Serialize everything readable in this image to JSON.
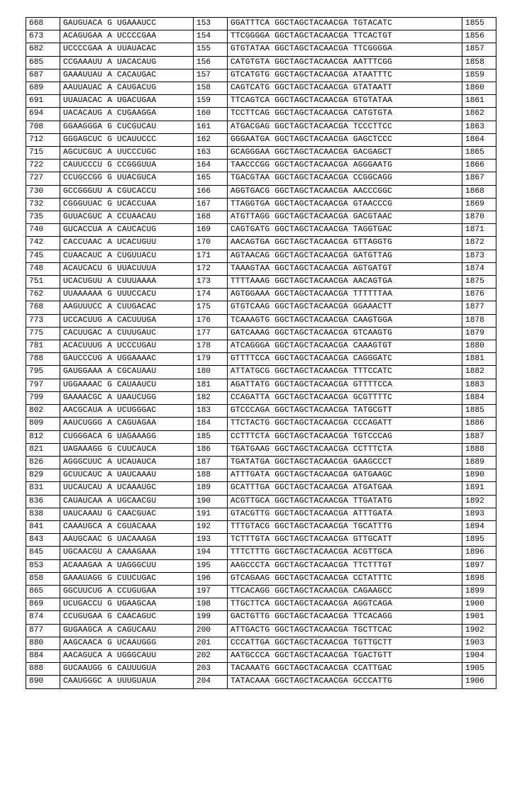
{
  "table": {
    "rows": [
      {
        "id1": "668",
        "seq1": "GAUGUACA G UGAAAUCC",
        "id2": "153",
        "seq2": "GGATTTCA GGCTAGCTACAACGA TGTACATC",
        "id3": "1855"
      },
      {
        "id1": "673",
        "seq1": "ACAGUGAA A UCCCCGAA",
        "id2": "154",
        "seq2": "TTCGGGGA GGCTAGCTACAACGA TTCACTGT",
        "id3": "1856"
      },
      {
        "id1": "682",
        "seq1": "UCCCCGAA A UUAUACAC",
        "id2": "155",
        "seq2": "GTGTATAA GGCTAGCTACAACGA TTCGGGGA",
        "id3": "1857"
      },
      {
        "id1": "685",
        "seq1": "CCGAAAUU A UACACAUG",
        "id2": "156",
        "seq2": "CATGTGTA GGCTAGCTACAACGA AATTTCGG",
        "id3": "1858"
      },
      {
        "id1": "687",
        "seq1": "GAAAUUAU A CACAUGAC",
        "id2": "157",
        "seq2": "GTCATGTG GGCTAGCTACAACGA ATAATTTC",
        "id3": "1859"
      },
      {
        "id1": "689",
        "seq1": "AAUUAUAC A CAUGACUG",
        "id2": "158",
        "seq2": "CAGTCATG GGCTAGCTACAACGA GTATAATT",
        "id3": "1860"
      },
      {
        "id1": "691",
        "seq1": "UUAUACAC A UGACUGAA",
        "id2": "159",
        "seq2": "TTCAGTCA GGCTAGCTACAACGA GTGTATAA",
        "id3": "1861"
      },
      {
        "id1": "694",
        "seq1": "UACACAUG A CUGAAGGA",
        "id2": "160",
        "seq2": "TCCTTCAG GGCTAGCTACAACGA CATGTGTA",
        "id3": "1862"
      },
      {
        "id1": "708",
        "seq1": "GGAAGGGA G CUCGUCAU",
        "id2": "161",
        "seq2": "ATGACGAG GGCTAGCTACAACGA TCCCTTCC",
        "id3": "1863"
      },
      {
        "id1": "712",
        "seq1": "GGGAGCUC G UCAUUCCC",
        "id2": "162",
        "seq2": "GGGAATGA GGCTAGCTACAACGA GAGCTCCC",
        "id3": "1864"
      },
      {
        "id1": "715",
        "seq1": "AGCUCGUC A UUCCCUGC",
        "id2": "163",
        "seq2": "GCAGGGAA GGCTAGCTACAACGA GACGAGCT",
        "id3": "1865"
      },
      {
        "id1": "722",
        "seq1": "CAUUCCCU G CCGGGUUA",
        "id2": "164",
        "seq2": "TAACCCGG GGCTAGCTACAACGA AGGGAATG",
        "id3": "1866"
      },
      {
        "id1": "727",
        "seq1": "CCUGCCGG G UUACGUCA",
        "id2": "165",
        "seq2": "TGACGTAA GGCTAGCTACAACGA CCGGCAGG",
        "id3": "1867"
      },
      {
        "id1": "730",
        "seq1": "GCCGGGUU A CGUCACCU",
        "id2": "166",
        "seq2": "AGGTGACG GGCTAGCTACAACGA AACCCGGC",
        "id3": "1868"
      },
      {
        "id1": "732",
        "seq1": "CGGGUUAC G UCACCUAA",
        "id2": "167",
        "seq2": "TTAGGTGA GGCTAGCTACAACGA GTAACCCG",
        "id3": "1869"
      },
      {
        "id1": "735",
        "seq1": "GUUACGUC A CCUAACAU",
        "id2": "168",
        "seq2": "ATGTTAGG GGCTAGCTACAACGA GACGTAAC",
        "id3": "1870"
      },
      {
        "id1": "740",
        "seq1": "GUCACCUA A CAUCACUG",
        "id2": "169",
        "seq2": "CAGTGATG GGCTAGCTACAACGA TAGGTGAC",
        "id3": "1871"
      },
      {
        "id1": "742",
        "seq1": "CACCUAAC A UCACUGUU",
        "id2": "170",
        "seq2": "AACAGTGA GGCTAGCTACAACGA GTTAGGTG",
        "id3": "1872"
      },
      {
        "id1": "745",
        "seq1": "CUAACAUC A CUGUUACU",
        "id2": "171",
        "seq2": "AGTAACAG GGCTAGCTACAACGA GATGTTAG",
        "id3": "1873"
      },
      {
        "id1": "748",
        "seq1": "ACAUCACU G UUACUUUA",
        "id2": "172",
        "seq2": "TAAAGTAA GGCTAGCTACAACGA AGTGATGT",
        "id3": "1874"
      },
      {
        "id1": "751",
        "seq1": "UCACUGUU A CUUUAAAA",
        "id2": "173",
        "seq2": "TTTTAAAG GGCTAGCTACAACGA AACAGTGA",
        "id3": "1875"
      },
      {
        "id1": "762",
        "seq1": "UUAAAAAA G UUUCCACU",
        "id2": "174",
        "seq2": "AGTGGAAA GGCTAGCTACAACGA TTTTTTAA",
        "id3": "1876"
      },
      {
        "id1": "768",
        "seq1": "AAGUUUCC A CUUGACAC",
        "id2": "175",
        "seq2": "GTGTCAAG GGCTAGCTACAACGA GGAAACTT",
        "id3": "1877"
      },
      {
        "id1": "773",
        "seq1": "UCCACUUG A CACUUUGA",
        "id2": "176",
        "seq2": "TCAAAGTG GGCTAGCTACAACGA CAAGTGGA",
        "id3": "1878"
      },
      {
        "id1": "775",
        "seq1": "CACUUGAC A CUUUGAUC",
        "id2": "177",
        "seq2": "GATCAAAG GGCTAGCTACAACGA GTCAAGTG",
        "id3": "1879"
      },
      {
        "id1": "781",
        "seq1": "ACACUUUG A UCCCUGAU",
        "id2": "178",
        "seq2": "ATCAGGGA GGCTAGCTACAACGA CAAAGTGT",
        "id3": "1880"
      },
      {
        "id1": "788",
        "seq1": "GAUCCCUG A UGGAAAAC",
        "id2": "179",
        "seq2": "GTTTTCCA GGCTAGCTACAACGA CAGGGATC",
        "id3": "1881"
      },
      {
        "id1": "795",
        "seq1": "GAUGGAAA A CGCAUAAU",
        "id2": "180",
        "seq2": "ATTATGCG GGCTAGCTACAACGA TTTCCATC",
        "id3": "1882"
      },
      {
        "id1": "797",
        "seq1": "UGGAAAAC G CAUAAUCU",
        "id2": "181",
        "seq2": "AGATTATG GGCTAGCTACAACGA GTTTTCCA",
        "id3": "1883"
      },
      {
        "id1": "799",
        "seq1": "GAAAACGC A UAAUCUGG",
        "id2": "182",
        "seq2": "CCAGATTA GGCTAGCTACAACGA GCGTTTTC",
        "id3": "1884"
      },
      {
        "id1": "802",
        "seq1": "AACGCAUA A UCUGGGAC",
        "id2": "183",
        "seq2": "GTCCCAGA GGCTAGCTACAACGA TATGCGTT",
        "id3": "1885"
      },
      {
        "id1": "809",
        "seq1": "AAUCUGGG A CAGUAGAA",
        "id2": "184",
        "seq2": "TTCTACTG GGCTAGCTACAACGA CCCAGATT",
        "id3": "1886"
      },
      {
        "id1": "812",
        "seq1": "CUGGGACA G UAGAAAGG",
        "id2": "185",
        "seq2": "CCTTTCTA GGCTAGCTACAACGA TGTCCCAG",
        "id3": "1887"
      },
      {
        "id1": "821",
        "seq1": "UAGAAAGG G CUUCAUCA",
        "id2": "186",
        "seq2": "TGATGAAG GGCTAGCTACAACGA CCTTTCTA",
        "id3": "1888"
      },
      {
        "id1": "826",
        "seq1": "AGGGCUUC A UCAUAUCA",
        "id2": "187",
        "seq2": "TGATATGA GGCTAGCTACAACGA GAAGCCCT",
        "id3": "1889"
      },
      {
        "id1": "829",
        "seq1": "GCUUCAUC A UAUCAAAU",
        "id2": "188",
        "seq2": "ATTTGATA GGCTAGCTACAACGA GATGAAGC",
        "id3": "1890"
      },
      {
        "id1": "831",
        "seq1": "UUCAUCAU A UCAAAUGC",
        "id2": "189",
        "seq2": "GCATTTGA GGCTAGCTACAACGA ATGATGAA",
        "id3": "1891"
      },
      {
        "id1": "836",
        "seq1": "CAUAUCAA A UGCAACGU",
        "id2": "190",
        "seq2": "ACGTTGCA GGCTAGCTACAACGA TTGATATG",
        "id3": "1892"
      },
      {
        "id1": "838",
        "seq1": "UAUCAAAU G CAACGUAC",
        "id2": "191",
        "seq2": "GTACGTTG GGCTAGCTACAACGA ATTTGATA",
        "id3": "1893"
      },
      {
        "id1": "841",
        "seq1": "CAAAUGCA A CGUACAAA",
        "id2": "192",
        "seq2": "TTTGTACG GGCTAGCTACAACGA TGCATTTG",
        "id3": "1894"
      },
      {
        "id1": "843",
        "seq1": "AAUGCAAC G UACAAAGA",
        "id2": "193",
        "seq2": "TCTTTGTA GGCTAGCTACAACGA GTTGCATT",
        "id3": "1895"
      },
      {
        "id1": "845",
        "seq1": "UGCAACGU A CAAAGAAA",
        "id2": "194",
        "seq2": "TTTCTTTG GGCTAGCTACAACGA ACGTTGCA",
        "id3": "1896"
      },
      {
        "id1": "853",
        "seq1": "ACAAAGAA A UAGGGCUU",
        "id2": "195",
        "seq2": "AAGCCCTA GGCTAGCTACAACGA TTCTTTGT",
        "id3": "1897"
      },
      {
        "id1": "858",
        "seq1": "GAAAUAGG G CUUCUGAC",
        "id2": "196",
        "seq2": "GTCAGAAG GGCTAGCTACAACGA CCTATTTC",
        "id3": "1898"
      },
      {
        "id1": "865",
        "seq1": "GGCUUCUG A CCUGUGAA",
        "id2": "197",
        "seq2": "TTCACAGG GGCTAGCTACAACGA CAGAAGCC",
        "id3": "1899"
      },
      {
        "id1": "869",
        "seq1": "UCUGACCU G UGAAGCAA",
        "id2": "198",
        "seq2": "TTGCTTCA GGCTAGCTACAACGA AGGTCAGA",
        "id3": "1900"
      },
      {
        "id1": "874",
        "seq1": "CCUGUGAA G CAACAGUC",
        "id2": "199",
        "seq2": "GACTGTTG GGCTAGCTACAACGA TTCACAGG",
        "id3": "1901"
      },
      {
        "id1": "877",
        "seq1": "GUGAAGCA A CAGUCAAU",
        "id2": "200",
        "seq2": "ATTGACTG GGCTAGCTACAACGA TGCTTCAC",
        "id3": "1902"
      },
      {
        "id1": "880",
        "seq1": "AAGCAACA G UCAAUGGG",
        "id2": "201",
        "seq2": "CCCATTGA GGCTAGCTACAACGA TGTTGCTT",
        "id3": "1903"
      },
      {
        "id1": "884",
        "seq1": "AACAGUCA A UGGGCAUU",
        "id2": "202",
        "seq2": "AATGCCCA GGCTAGCTACAACGA TGACTGTT",
        "id3": "1904"
      },
      {
        "id1": "888",
        "seq1": "GUCAAUGG G CAUUUGUA",
        "id2": "203",
        "seq2": "TACAAATG GGCTAGCTACAACGA CCATTGAC",
        "id3": "1905"
      },
      {
        "id1": "890",
        "seq1": "CAAUGGGC A UUUGUAUA",
        "id2": "204",
        "seq2": "TATACAAA GGCTAGCTACAACGA GCCCATTG",
        "id3": "1906"
      }
    ]
  }
}
